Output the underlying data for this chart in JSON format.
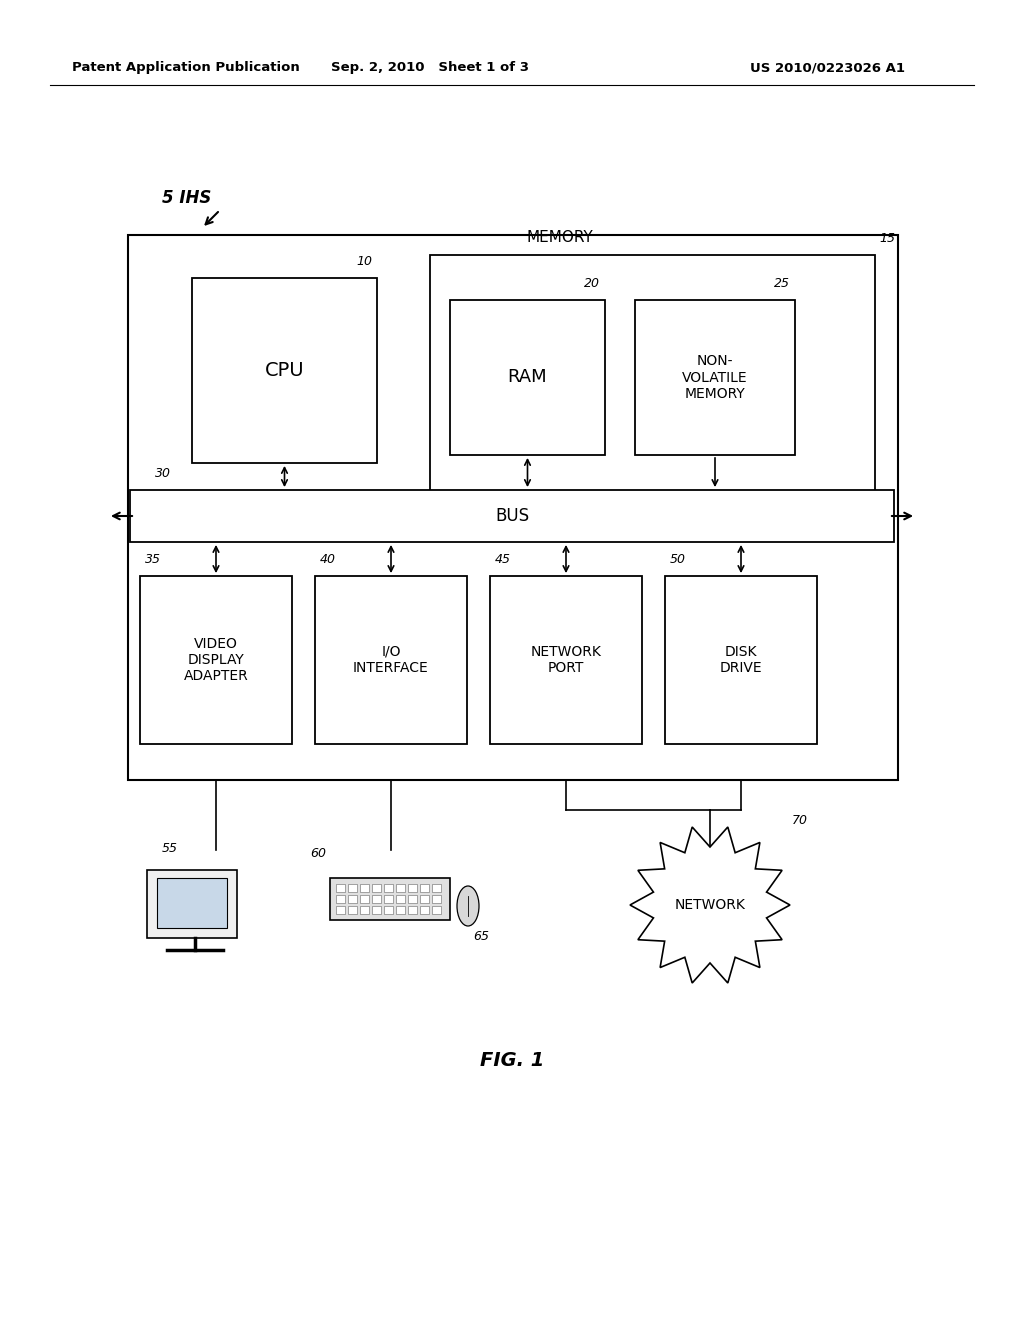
{
  "bg_color": "#ffffff",
  "header_left": "Patent Application Publication",
  "header_mid": "Sep. 2, 2010   Sheet 1 of 3",
  "header_right": "US 2010/0223026 A1",
  "fig_label": "FIG. 1",
  "ihs_label": "5 IHS",
  "labels": {
    "memory": "MEMORY",
    "memory_num": "15",
    "cpu": "CPU",
    "cpu_num": "10",
    "ram": "RAM",
    "ram_num": "20",
    "nvm": "NON-\nVOLATILE\nMEMORY",
    "nvm_num": "25",
    "bus": "BUS",
    "bus_num": "30",
    "vda": "VIDEO\nDISPLAY\nADAPTER",
    "vda_num": "35",
    "io": "I/O\nINTERFACE",
    "io_num": "40",
    "np": "NETWORK\nPORT",
    "np_num": "45",
    "dd": "DISK\nDRIVE",
    "dd_num": "50",
    "monitor_num": "55",
    "keyboard_num": "60",
    "mouse_num": "65",
    "network_num": "70",
    "network": "NETWORK"
  }
}
